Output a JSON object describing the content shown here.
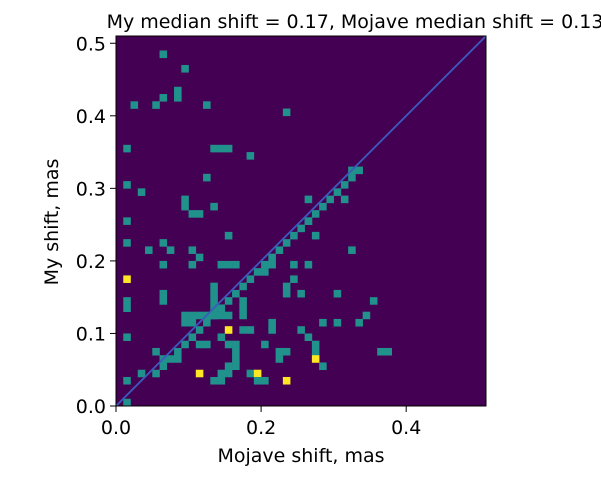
{
  "chart_data": {
    "type": "heatmap",
    "title": "My median shift = 0.17, Mojave median shift = 0.13",
    "xlabel": "Mojave shift, mas",
    "ylabel": "My shift, mas",
    "xlim": [
      0,
      0.51
    ],
    "ylim": [
      0,
      0.51
    ],
    "bin_width": 0.01,
    "x_ticks": [
      "0.0",
      "0.2",
      "0.4"
    ],
    "y_ticks": [
      "0.0",
      "0.1",
      "0.2",
      "0.3",
      "0.4",
      "0.5"
    ],
    "x_tick_values": [
      0.0,
      0.2,
      0.4
    ],
    "y_tick_values": [
      0.0,
      0.1,
      0.2,
      0.3,
      0.4,
      0.5
    ],
    "grid": false,
    "colormap": {
      "0": "#440154",
      "1": "#21918c",
      "2": "#fde725"
    },
    "reference_line": {
      "from": [
        0,
        0
      ],
      "to": [
        0.51,
        0.51
      ],
      "color": "#3b5bbd"
    },
    "cells": [
      [
        0.01,
        0.0,
        1
      ],
      [
        0.01,
        0.03,
        1
      ],
      [
        0.03,
        0.04,
        1
      ],
      [
        0.05,
        0.04,
        1
      ],
      [
        0.06,
        0.05,
        1
      ],
      [
        0.05,
        0.07,
        1
      ],
      [
        0.06,
        0.06,
        1
      ],
      [
        0.07,
        0.06,
        1
      ],
      [
        0.08,
        0.06,
        1
      ],
      [
        0.08,
        0.07,
        1
      ],
      [
        0.09,
        0.08,
        1
      ],
      [
        0.1,
        0.09,
        1
      ],
      [
        0.11,
        0.1,
        1
      ],
      [
        0.12,
        0.11,
        1
      ],
      [
        0.13,
        0.12,
        1
      ],
      [
        0.14,
        0.13,
        1
      ],
      [
        0.15,
        0.14,
        1
      ],
      [
        0.16,
        0.15,
        1
      ],
      [
        0.17,
        0.16,
        1
      ],
      [
        0.18,
        0.17,
        1
      ],
      [
        0.19,
        0.18,
        1
      ],
      [
        0.2,
        0.19,
        1
      ],
      [
        0.21,
        0.2,
        1
      ],
      [
        0.22,
        0.21,
        1
      ],
      [
        0.23,
        0.22,
        1
      ],
      [
        0.24,
        0.23,
        1
      ],
      [
        0.25,
        0.24,
        1
      ],
      [
        0.26,
        0.25,
        1
      ],
      [
        0.27,
        0.26,
        1
      ],
      [
        0.28,
        0.27,
        1
      ],
      [
        0.29,
        0.28,
        1
      ],
      [
        0.3,
        0.29,
        1
      ],
      [
        0.31,
        0.3,
        1
      ],
      [
        0.32,
        0.31,
        1
      ],
      [
        0.33,
        0.32,
        1
      ],
      [
        0.01,
        0.17,
        2
      ],
      [
        0.01,
        0.09,
        1
      ],
      [
        0.01,
        0.14,
        1
      ],
      [
        0.01,
        0.13,
        1
      ],
      [
        0.01,
        0.22,
        1
      ],
      [
        0.01,
        0.25,
        1
      ],
      [
        0.01,
        0.3,
        1
      ],
      [
        0.01,
        0.35,
        1
      ],
      [
        0.02,
        0.41,
        1
      ],
      [
        0.03,
        0.29,
        1
      ],
      [
        0.04,
        0.21,
        1
      ],
      [
        0.05,
        0.41,
        1
      ],
      [
        0.06,
        0.48,
        1
      ],
      [
        0.06,
        0.22,
        1
      ],
      [
        0.06,
        0.19,
        1
      ],
      [
        0.06,
        0.15,
        1
      ],
      [
        0.06,
        0.14,
        1
      ],
      [
        0.07,
        0.21,
        1
      ],
      [
        0.08,
        0.42,
        1
      ],
      [
        0.09,
        0.46,
        1
      ],
      [
        0.09,
        0.28,
        1
      ],
      [
        0.09,
        0.27,
        1
      ],
      [
        0.1,
        0.26,
        1
      ],
      [
        0.11,
        0.26,
        1
      ],
      [
        0.1,
        0.21,
        1
      ],
      [
        0.11,
        0.2,
        1
      ],
      [
        0.1,
        0.19,
        1
      ],
      [
        0.09,
        0.12,
        1
      ],
      [
        0.09,
        0.11,
        1
      ],
      [
        0.1,
        0.12,
        1
      ],
      [
        0.1,
        0.11,
        1
      ],
      [
        0.11,
        0.12,
        1
      ],
      [
        0.12,
        0.12,
        1
      ],
      [
        0.11,
        0.08,
        1
      ],
      [
        0.12,
        0.08,
        1
      ],
      [
        0.12,
        0.41,
        1
      ],
      [
        0.12,
        0.31,
        1
      ],
      [
        0.13,
        0.27,
        1
      ],
      [
        0.13,
        0.35,
        1
      ],
      [
        0.14,
        0.35,
        1
      ],
      [
        0.15,
        0.35,
        1
      ],
      [
        0.15,
        0.23,
        1
      ],
      [
        0.14,
        0.19,
        1
      ],
      [
        0.15,
        0.19,
        1
      ],
      [
        0.16,
        0.19,
        1
      ],
      [
        0.13,
        0.16,
        1
      ],
      [
        0.13,
        0.15,
        1
      ],
      [
        0.13,
        0.14,
        1
      ],
      [
        0.13,
        0.13,
        1
      ],
      [
        0.13,
        0.12,
        1
      ],
      [
        0.14,
        0.12,
        1
      ],
      [
        0.15,
        0.12,
        1
      ],
      [
        0.15,
        0.1,
        2
      ],
      [
        0.14,
        0.09,
        1
      ],
      [
        0.15,
        0.08,
        1
      ],
      [
        0.16,
        0.08,
        1
      ],
      [
        0.16,
        0.07,
        1
      ],
      [
        0.16,
        0.06,
        1
      ],
      [
        0.16,
        0.05,
        1
      ],
      [
        0.15,
        0.05,
        1
      ],
      [
        0.14,
        0.04,
        1
      ],
      [
        0.15,
        0.04,
        1
      ],
      [
        0.13,
        0.03,
        1
      ],
      [
        0.14,
        0.03,
        1
      ],
      [
        0.11,
        0.04,
        2
      ],
      [
        0.17,
        0.14,
        1
      ],
      [
        0.17,
        0.13,
        1
      ],
      [
        0.17,
        0.12,
        1
      ],
      [
        0.18,
        0.1,
        1
      ],
      [
        0.17,
        0.1,
        1
      ],
      [
        0.18,
        0.34,
        1
      ],
      [
        0.18,
        0.04,
        1
      ],
      [
        0.19,
        0.04,
        2
      ],
      [
        0.19,
        0.03,
        1
      ],
      [
        0.2,
        0.03,
        1
      ],
      [
        0.2,
        0.08,
        1
      ],
      [
        0.21,
        0.1,
        1
      ],
      [
        0.21,
        0.11,
        1
      ],
      [
        0.2,
        0.18,
        1
      ],
      [
        0.21,
        0.19,
        1
      ],
      [
        0.22,
        0.07,
        1
      ],
      [
        0.23,
        0.07,
        1
      ],
      [
        0.22,
        0.06,
        1
      ],
      [
        0.23,
        0.4,
        1
      ],
      [
        0.23,
        0.03,
        2
      ],
      [
        0.24,
        0.19,
        1
      ],
      [
        0.24,
        0.17,
        1
      ],
      [
        0.23,
        0.16,
        1
      ],
      [
        0.23,
        0.15,
        1
      ],
      [
        0.25,
        0.15,
        1
      ],
      [
        0.26,
        0.19,
        1
      ],
      [
        0.25,
        0.1,
        1
      ],
      [
        0.26,
        0.09,
        1
      ],
      [
        0.27,
        0.08,
        1
      ],
      [
        0.27,
        0.07,
        1
      ],
      [
        0.27,
        0.06,
        2
      ],
      [
        0.28,
        0.05,
        1
      ],
      [
        0.28,
        0.11,
        1
      ],
      [
        0.26,
        0.25,
        1
      ],
      [
        0.26,
        0.28,
        1
      ],
      [
        0.27,
        0.23,
        1
      ],
      [
        0.3,
        0.11,
        1
      ],
      [
        0.3,
        0.15,
        1
      ],
      [
        0.31,
        0.28,
        1
      ],
      [
        0.32,
        0.32,
        1
      ],
      [
        0.32,
        0.21,
        1
      ],
      [
        0.33,
        0.11,
        1
      ],
      [
        0.34,
        0.12,
        1
      ],
      [
        0.35,
        0.14,
        1
      ],
      [
        0.36,
        0.07,
        1
      ],
      [
        0.37,
        0.07,
        1
      ],
      [
        0.06,
        0.42,
        1
      ],
      [
        0.08,
        0.43,
        1
      ]
    ]
  }
}
